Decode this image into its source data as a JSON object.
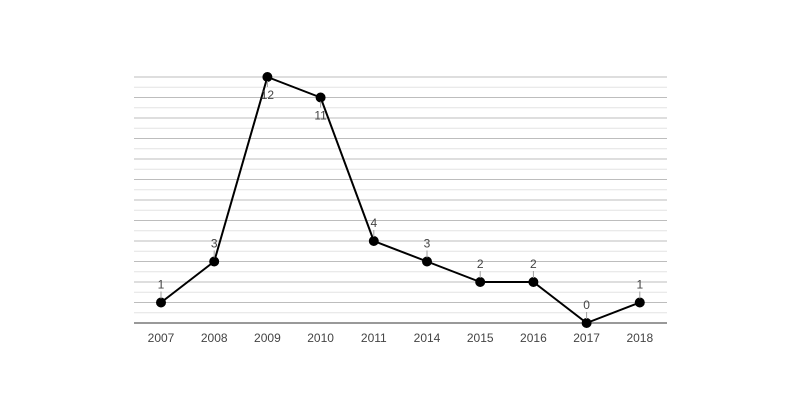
{
  "chart_data": {
    "type": "line",
    "title": "",
    "xlabel": "",
    "ylabel": "",
    "categories": [
      "2007",
      "2008",
      "2009",
      "2010",
      "2011",
      "2014",
      "2015",
      "2016",
      "2017",
      "2018"
    ],
    "series": [
      {
        "values": [
          1,
          3,
          12,
          11,
          4,
          3,
          2,
          2,
          0,
          1
        ],
        "color": "#000000",
        "data_labels": [
          "1",
          "3",
          "12",
          "11",
          "4",
          "3",
          "2",
          "2",
          "0",
          "1"
        ]
      }
    ],
    "ylim": [
      0,
      12
    ],
    "grid": true,
    "y_tick_labels_shown": false,
    "legend": "none",
    "colors": {
      "line": "#000000",
      "grid_major": "#bdbdbd",
      "grid_minor": "#e3e3e3",
      "axis": "#333333",
      "text": "#444444"
    }
  }
}
